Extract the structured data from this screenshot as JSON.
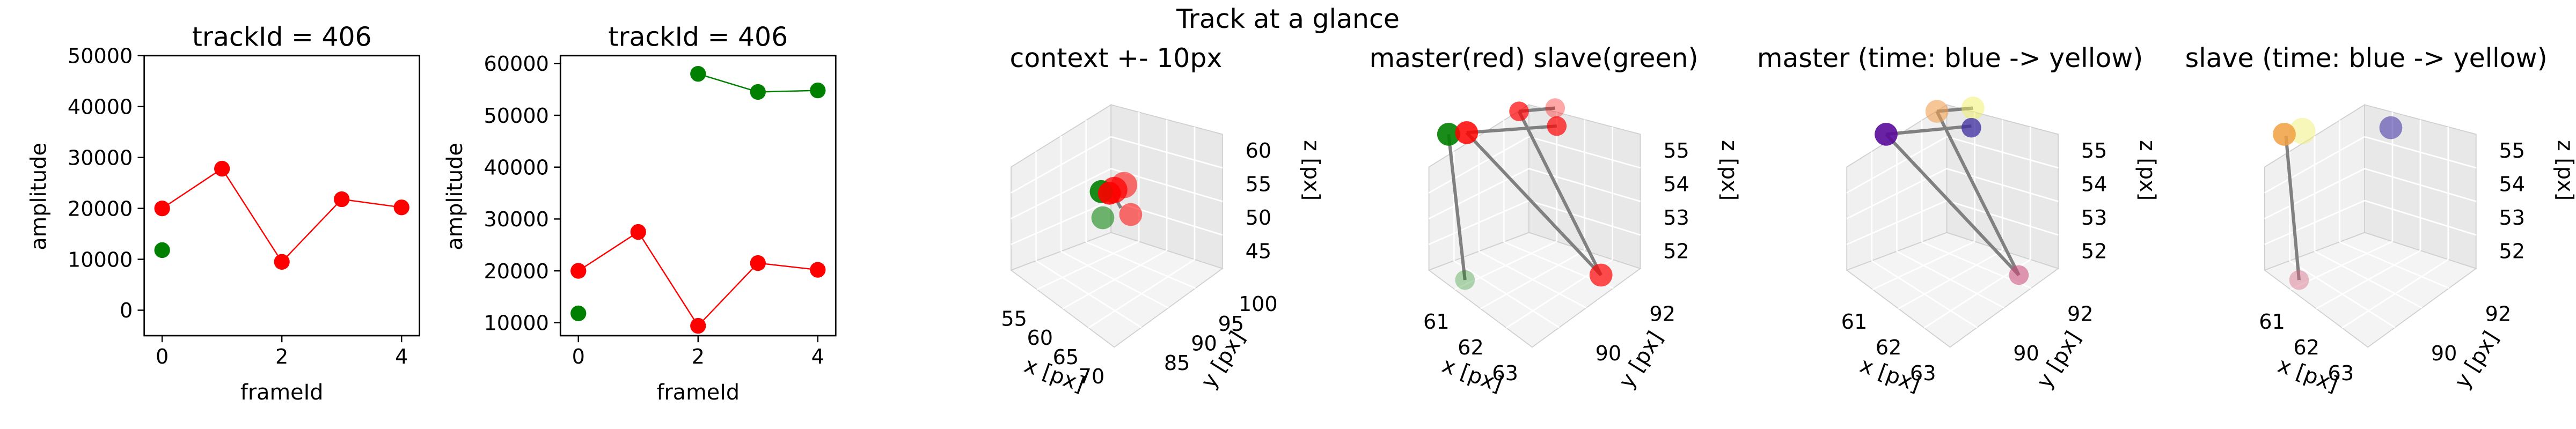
{
  "suptitle": "Track at a glance",
  "colors": {
    "red": "#ff0000",
    "green": "#008000",
    "pane": "#f2f2f2",
    "edge": "#808080"
  },
  "chart_data": [
    {
      "type": "line",
      "title": "trackId = 406",
      "xlabel": "frameId",
      "ylabel": "amplitude",
      "xlim": [
        -0.3,
        4.3
      ],
      "ylim": [
        -5000,
        50000
      ],
      "xticks": [
        "0",
        "2",
        "4"
      ],
      "yticks": [
        "0",
        "10000",
        "20000",
        "30000",
        "40000",
        "50000"
      ],
      "series": [
        {
          "color": "red",
          "line": true,
          "x": [
            0,
            1,
            2,
            3,
            4
          ],
          "y": [
            20000,
            27800,
            9500,
            21800,
            20200
          ]
        },
        {
          "color": "green",
          "line": false,
          "x": [
            0
          ],
          "y": [
            11800
          ]
        }
      ]
    },
    {
      "type": "line",
      "title": "trackId = 406",
      "xlabel": "frameId",
      "ylabel": "amplitude",
      "xlim": [
        -0.3,
        4.3
      ],
      "ylim": [
        7500,
        61500
      ],
      "xticks": [
        "0",
        "2",
        "4"
      ],
      "yticks": [
        "10000",
        "20000",
        "30000",
        "40000",
        "50000",
        "60000"
      ],
      "series": [
        {
          "color": "red",
          "line": true,
          "x": [
            0,
            1,
            2,
            3,
            4
          ],
          "y": [
            20000,
            27500,
            9400,
            21500,
            20200
          ]
        },
        {
          "color": "green",
          "line": true,
          "x": [
            2,
            3,
            4
          ],
          "y": [
            58000,
            54500,
            54800
          ]
        },
        {
          "color": "green",
          "line": false,
          "x": [
            0
          ],
          "y": [
            11800
          ]
        }
      ]
    },
    {
      "type": "scatter",
      "title": "context +- 10px",
      "xlabel": "x [px]",
      "ylabel": "y [px]",
      "zlabel": "z [px]",
      "xticks": [
        "55",
        "60",
        "65",
        "70"
      ],
      "yticks": [
        "85",
        "90",
        "95",
        "100"
      ],
      "zticks": [
        "45",
        "50",
        "55",
        "60"
      ]
    },
    {
      "type": "scatter",
      "title": "master(red) slave(green)",
      "xlabel": "x [px]",
      "ylabel": "y [px]",
      "zlabel": "z [px]",
      "xticks": [
        "61",
        "62",
        "63"
      ],
      "yticks": [
        "90",
        "92"
      ],
      "zticks": [
        "52",
        "53",
        "54",
        "55"
      ]
    },
    {
      "type": "scatter",
      "title": "master (time: blue -> yellow)",
      "xlabel": "x [px]",
      "ylabel": "y [px]",
      "zlabel": "z [px]",
      "xticks": [
        "61",
        "62",
        "63"
      ],
      "yticks": [
        "90",
        "92"
      ],
      "zticks": [
        "52",
        "53",
        "54",
        "55"
      ]
    },
    {
      "type": "scatter",
      "title": "slave (time: blue -> yellow)",
      "xlabel": "x [px]",
      "ylabel": "y [px]",
      "zlabel": "z [px]",
      "xticks": [
        "61",
        "62",
        "63"
      ],
      "yticks": [
        "90",
        "92"
      ],
      "zticks": [
        "52",
        "53",
        "54",
        "55"
      ]
    }
  ]
}
